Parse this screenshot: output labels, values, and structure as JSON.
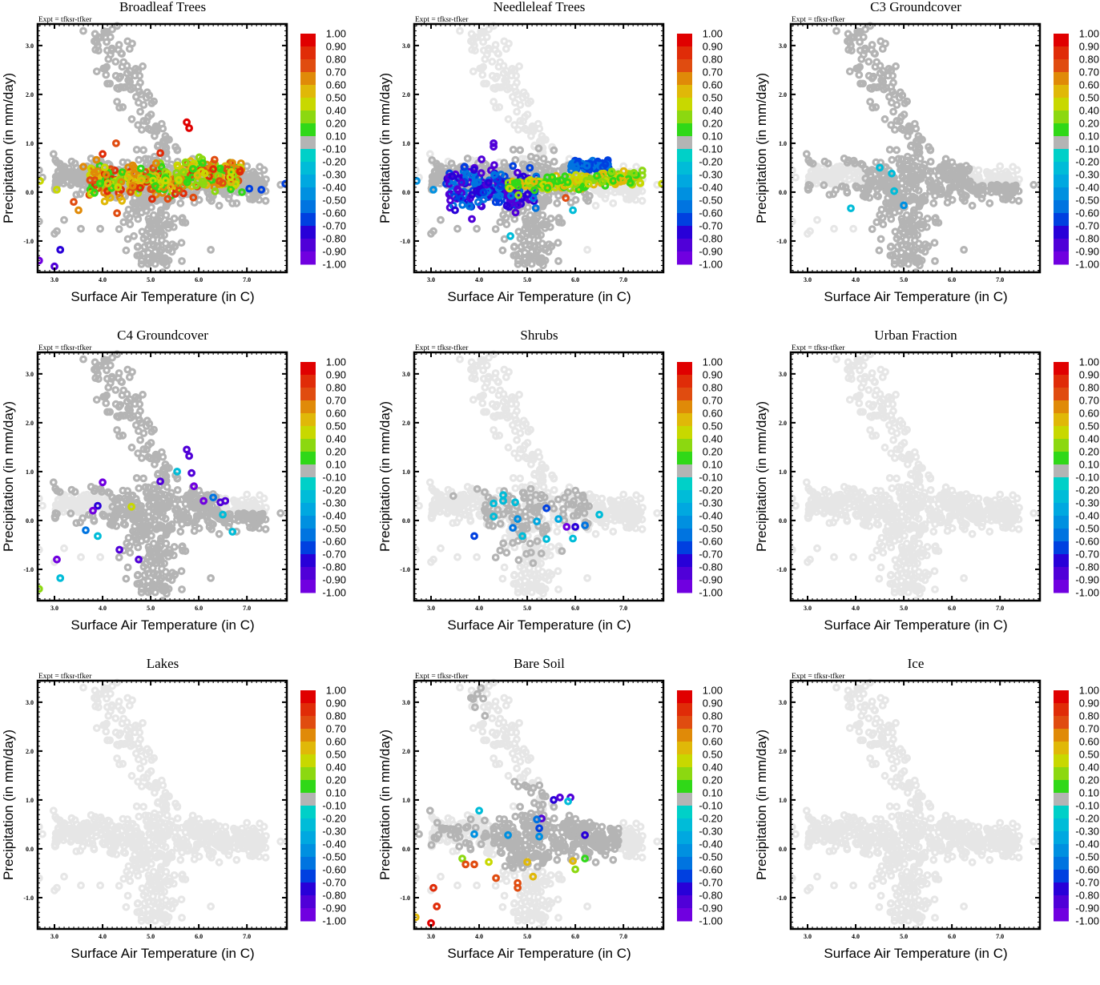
{
  "figure": {
    "expt_label": "Expt = tfksr-tfker",
    "xlabel": "Surface Air Temperature (in C)",
    "ylabel": "Precipitation (in mm/day)"
  },
  "chart_data": {
    "type": "scatter",
    "xlabel": "Surface Air Temperature (in C)",
    "ylabel": "Precipitation (in mm/day)",
    "xlim": [
      2.65,
      7.83
    ],
    "ylim": [
      -1.64,
      3.44
    ],
    "xticks": [
      "3.0",
      "4.0",
      "5.0",
      "6.0",
      "7.0"
    ],
    "xtick_values": [
      3.0,
      4.0,
      5.0,
      6.0,
      7.0
    ],
    "yticks": [
      "-1.0",
      "0.0",
      "1.0",
      "2.0",
      "3.0"
    ],
    "ytick_values": [
      -1.0,
      0.0,
      1.0,
      2.0,
      3.0
    ],
    "grid": false,
    "colorbar": {
      "placement": "right",
      "labels": [
        "1.00",
        "0.90",
        "0.80",
        "0.70",
        "0.60",
        "0.50",
        "0.40",
        "0.20",
        "0.10",
        "-0.10",
        "-0.20",
        "-0.30",
        "-0.40",
        "-0.50",
        "-0.60",
        "-0.70",
        "-0.80",
        "-0.90",
        "-1.00"
      ],
      "colors": [
        "#e00000",
        "#e02c08",
        "#e04c10",
        "#e08a08",
        "#e0b808",
        "#c8d800",
        "#8cd810",
        "#30d818",
        "#b4b4b4",
        "#00d0c8",
        "#00bcd8",
        "#00a8e0",
        "#0090e0",
        "#0074e0",
        "#0040e0",
        "#2800d8",
        "#5000d8",
        "#7000e0"
      ],
      "masked_color": "#e6e6e6"
    },
    "panels": [
      {
        "title": "Broadleaf Trees",
        "summary": "Strong positive correlations (0.5–1.0, orange/red) across the main cluster 3.3–6.8 C, -0.6–1.4 mm/day; some 0.1–0.4 green/yellow; a few negative (-0.5 to -0.9) at extremes.",
        "highlighted": [
          {
            "x": 5.75,
            "y": 1.43,
            "r": 0.95
          },
          {
            "x": 5.8,
            "y": 1.31,
            "r": 0.95
          },
          {
            "x": 4.0,
            "y": 0.78,
            "r": 0.85
          },
          {
            "x": 4.28,
            "y": 1.0,
            "r": 0.75
          },
          {
            "x": 5.2,
            "y": 0.8,
            "r": 0.9
          },
          {
            "x": 6.3,
            "y": 0.47,
            "r": 0.9
          },
          {
            "x": 3.6,
            "y": 0.52,
            "r": 0.65
          },
          {
            "x": 3.4,
            "y": -0.2,
            "r": 0.75
          },
          {
            "x": 3.5,
            "y": -0.37,
            "r": 0.65
          },
          {
            "x": 4.3,
            "y": -0.43,
            "r": 0.75
          },
          {
            "x": 6.7,
            "y": -0.23,
            "r": 0.1
          },
          {
            "x": 4.65,
            "y": -0.9,
            "r": 0.1
          },
          {
            "x": 7.05,
            "y": 0.07,
            "r": -0.65
          },
          {
            "x": 7.3,
            "y": 0.05,
            "r": -0.65
          },
          {
            "x": 7.8,
            "y": 0.17,
            "r": -0.6
          },
          {
            "x": 3.12,
            "y": -1.18,
            "r": -0.7
          },
          {
            "x": 2.68,
            "y": -1.4,
            "r": -0.9
          },
          {
            "x": 3.0,
            "y": -1.52,
            "r": -0.85
          },
          {
            "x": 2.7,
            "y": 0.23,
            "r": 0.45
          },
          {
            "x": 3.05,
            "y": 0.05,
            "r": 0.45
          }
        ]
      },
      {
        "title": "Needleleaf Trees",
        "summary": "Negative correlations (-0.5 to -0.9, blue/purple) for T < 5.0 C; positive 0.1–0.6 (green/yellow) band at 5.0–7.4 C near 0.1–0.4 mm/day; blue streak at 6–6.5 C, 0.6 mm/day.",
        "highlighted": [
          {
            "x": 4.3,
            "y": 1.0,
            "r": -0.85
          },
          {
            "x": 4.3,
            "y": 0.93,
            "r": -0.8
          },
          {
            "x": 4.05,
            "y": 0.67,
            "r": -0.85
          },
          {
            "x": 3.7,
            "y": 0.52,
            "r": -0.65
          },
          {
            "x": 3.4,
            "y": -0.17,
            "r": -0.85
          },
          {
            "x": 3.5,
            "y": -0.37,
            "r": -0.7
          },
          {
            "x": 3.85,
            "y": -0.55,
            "r": -0.8
          },
          {
            "x": 2.7,
            "y": 0.23,
            "r": -0.45
          },
          {
            "x": 3.05,
            "y": 0.05,
            "r": -0.45
          },
          {
            "x": 5.8,
            "y": -0.12,
            "r": 0.75
          },
          {
            "x": 7.0,
            "y": 0.23,
            "r": 0.6
          },
          {
            "x": 7.35,
            "y": 0.18,
            "r": 0.5
          },
          {
            "x": 7.8,
            "y": 0.17,
            "r": 0.5
          },
          {
            "x": 4.65,
            "y": -0.9,
            "r": -0.25
          },
          {
            "x": 5.95,
            "y": -0.37,
            "r": -0.25
          }
        ]
      },
      {
        "title": "C3 Groundcover",
        "summary": "Nearly all values within ±0.1 (grey); a few weak negatives (-0.2 to -0.4).",
        "highlighted": [
          {
            "x": 4.5,
            "y": 0.5,
            "r": -0.25
          },
          {
            "x": 4.75,
            "y": 0.38,
            "r": -0.25
          },
          {
            "x": 4.8,
            "y": 0.02,
            "r": -0.25
          },
          {
            "x": 3.9,
            "y": -0.33,
            "r": -0.25
          },
          {
            "x": 5.0,
            "y": -0.27,
            "r": -0.45
          }
        ]
      },
      {
        "title": "C4 Groundcover",
        "summary": "Mostly ±0.1 (grey); scattered negatives (-0.2 to -1.0, cyan to purple) across the cluster; one 0.4 point near 4.6 C.",
        "highlighted": [
          {
            "x": 5.75,
            "y": 1.45,
            "r": -0.85
          },
          {
            "x": 5.8,
            "y": 1.32,
            "r": -0.85
          },
          {
            "x": 5.55,
            "y": 1.0,
            "r": -0.25
          },
          {
            "x": 5.85,
            "y": 0.97,
            "r": -0.8
          },
          {
            "x": 5.2,
            "y": 0.8,
            "r": -0.85
          },
          {
            "x": 5.9,
            "y": 0.7,
            "r": -0.9
          },
          {
            "x": 4.0,
            "y": 0.78,
            "r": -0.9
          },
          {
            "x": 3.9,
            "y": 0.3,
            "r": -0.75
          },
          {
            "x": 3.8,
            "y": 0.2,
            "r": -0.9
          },
          {
            "x": 4.6,
            "y": 0.28,
            "r": 0.45
          },
          {
            "x": 6.1,
            "y": 0.4,
            "r": -0.9
          },
          {
            "x": 6.3,
            "y": 0.47,
            "r": -0.55
          },
          {
            "x": 6.45,
            "y": 0.37,
            "r": -0.85
          },
          {
            "x": 6.55,
            "y": 0.4,
            "r": -0.85
          },
          {
            "x": 6.5,
            "y": 0.12,
            "r": -0.25
          },
          {
            "x": 6.7,
            "y": -0.23,
            "r": -0.25
          },
          {
            "x": 3.65,
            "y": -0.2,
            "r": -0.55
          },
          {
            "x": 3.9,
            "y": -0.32,
            "r": -0.25
          },
          {
            "x": 4.35,
            "y": -0.6,
            "r": -0.85
          },
          {
            "x": 4.75,
            "y": -0.8,
            "r": -0.85
          },
          {
            "x": 3.05,
            "y": -0.8,
            "r": -0.9
          },
          {
            "x": 3.12,
            "y": -1.18,
            "r": -0.25
          },
          {
            "x": 2.68,
            "y": -1.4,
            "r": 0.25
          }
        ]
      },
      {
        "title": "Shrubs",
        "summary": "Mostly masked (light grey) with a core of ±0.1 values; several weak negatives (-0.2 to -0.9).",
        "highlighted": [
          {
            "x": 4.5,
            "y": 0.52,
            "r": -0.25
          },
          {
            "x": 4.3,
            "y": 0.35,
            "r": -0.25
          },
          {
            "x": 4.75,
            "y": 0.37,
            "r": -0.25
          },
          {
            "x": 4.5,
            "y": 0.4,
            "r": -0.25
          },
          {
            "x": 4.3,
            "y": 0.08,
            "r": -0.25
          },
          {
            "x": 4.8,
            "y": 0.03,
            "r": -0.45
          },
          {
            "x": 4.7,
            "y": -0.15,
            "r": -0.5
          },
          {
            "x": 4.9,
            "y": -0.32,
            "r": -0.25
          },
          {
            "x": 3.9,
            "y": -0.32,
            "r": -0.65
          },
          {
            "x": 5.4,
            "y": 0.25,
            "r": -0.65
          },
          {
            "x": 5.2,
            "y": -0.02,
            "r": -0.35
          },
          {
            "x": 5.4,
            "y": -0.38,
            "r": -0.25
          },
          {
            "x": 5.65,
            "y": 0.03,
            "r": -0.35
          },
          {
            "x": 5.82,
            "y": -0.13,
            "r": -0.9
          },
          {
            "x": 6.0,
            "y": -0.13,
            "r": -0.7
          },
          {
            "x": 6.2,
            "y": -0.1,
            "r": -0.55
          },
          {
            "x": 5.95,
            "y": -0.37,
            "r": -0.25
          },
          {
            "x": 6.5,
            "y": 0.12,
            "r": -0.25
          }
        ]
      },
      {
        "title": "Urban Fraction",
        "summary": "All points masked (light grey); no correlation values shown.",
        "highlighted": []
      },
      {
        "title": "Lakes",
        "summary": "All points masked (light grey); no correlation values shown.",
        "highlighted": []
      },
      {
        "title": "Bare Soil",
        "summary": "Positive correlations (0.2–0.9) at low precipitation (-0.1 to -1.5 mm/day); negatives (-0.3 to -0.9) at 5.2–6.4 C, 0.2–1.05 mm/day; core within ±0.1.",
        "highlighted": [
          {
            "x": 5.55,
            "y": 1.0,
            "r": -0.7
          },
          {
            "x": 5.68,
            "y": 1.05,
            "r": -0.85
          },
          {
            "x": 5.9,
            "y": 1.05,
            "r": -0.85
          },
          {
            "x": 5.85,
            "y": 0.97,
            "r": -0.25
          },
          {
            "x": 4.0,
            "y": 0.78,
            "r": -0.25
          },
          {
            "x": 5.3,
            "y": 0.62,
            "r": -0.85
          },
          {
            "x": 5.2,
            "y": 0.6,
            "r": -0.5
          },
          {
            "x": 5.25,
            "y": 0.42,
            "r": -0.65
          },
          {
            "x": 5.25,
            "y": 0.25,
            "r": -0.45
          },
          {
            "x": 3.9,
            "y": 0.3,
            "r": -0.45
          },
          {
            "x": 4.6,
            "y": 0.28,
            "r": -0.45
          },
          {
            "x": 6.2,
            "y": 0.28,
            "r": -0.7
          },
          {
            "x": 3.65,
            "y": -0.2,
            "r": 0.25
          },
          {
            "x": 3.72,
            "y": -0.32,
            "r": 0.75
          },
          {
            "x": 3.9,
            "y": -0.32,
            "r": 0.8
          },
          {
            "x": 4.2,
            "y": -0.27,
            "r": 0.45
          },
          {
            "x": 4.35,
            "y": -0.6,
            "r": 0.8
          },
          {
            "x": 4.8,
            "y": -0.7,
            "r": 0.75
          },
          {
            "x": 4.8,
            "y": -0.8,
            "r": 0.75
          },
          {
            "x": 5.12,
            "y": -0.57,
            "r": 0.6
          },
          {
            "x": 5.0,
            "y": -0.27,
            "r": 0.6
          },
          {
            "x": 5.95,
            "y": -0.25,
            "r": 0.6
          },
          {
            "x": 6.0,
            "y": -0.42,
            "r": 0.25
          },
          {
            "x": 6.2,
            "y": -0.2,
            "r": 0.15
          },
          {
            "x": 3.05,
            "y": -0.8,
            "r": 0.9
          },
          {
            "x": 3.12,
            "y": -1.18,
            "r": 0.9
          },
          {
            "x": 3.0,
            "y": -1.52,
            "r": 0.95
          },
          {
            "x": 2.68,
            "y": -1.4,
            "r": 0.6
          }
        ]
      },
      {
        "title": "Ice",
        "summary": "All points masked (light grey); no correlation values shown.",
        "highlighted": []
      }
    ]
  }
}
